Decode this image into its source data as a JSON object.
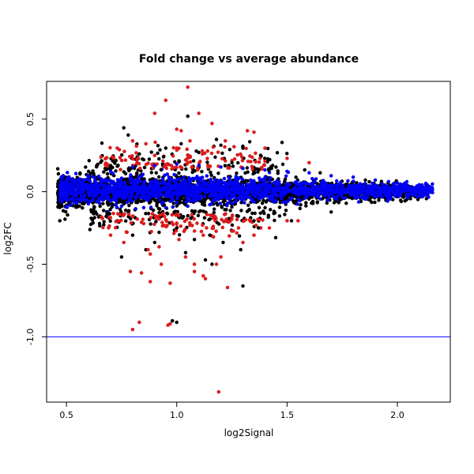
{
  "chart_data": {
    "type": "scatter",
    "title": "Fold change vs average abundance",
    "xlabel": "log2Signal",
    "ylabel": "log2FC",
    "xlim": [
      0.41,
      2.24
    ],
    "ylim": [
      -1.45,
      0.76
    ],
    "x_ticks": [
      "0.5",
      "1.0",
      "1.5",
      "2.0"
    ],
    "x_tick_values": [
      0.5,
      1.0,
      1.5,
      2.0
    ],
    "y_ticks": [
      "-1.0",
      "-0.5",
      "0.0",
      "0.5"
    ],
    "y_tick_values": [
      -1.0,
      -0.5,
      0.0,
      0.5
    ],
    "grid": false,
    "reference_line": {
      "y": -1.0,
      "color": "#0000ff"
    },
    "colors": {
      "black": "#000000",
      "red": "#e41a1c",
      "blue": "#0000ff"
    },
    "series": [
      {
        "color": "black",
        "x": [
          0.76,
          0.78,
          1.05,
          1.2,
          1.3,
          0.98,
          1.0,
          1.04,
          1.13,
          1.3,
          0.6,
          0.7,
          0.85,
          0.95,
          1.1,
          1.25,
          1.45,
          1.58,
          1.65,
          0.65,
          0.8,
          0.9,
          1.0,
          1.15,
          1.35,
          0.75,
          0.86,
          1.16,
          1.21,
          1.52,
          0.68,
          0.92,
          1.08,
          1.29,
          1.37,
          1.44,
          1.7,
          0.71,
          0.83,
          0.94,
          1.02,
          1.18,
          1.24
        ],
        "y": [
          0.44,
          0.39,
          0.52,
          0.32,
          0.3,
          -0.89,
          -0.9,
          -0.42,
          -0.47,
          -0.65,
          0.14,
          0.18,
          0.22,
          0.3,
          0.27,
          0.2,
          0.17,
          0.15,
          0.13,
          -0.22,
          -0.3,
          -0.35,
          -0.25,
          -0.3,
          -0.2,
          -0.45,
          -0.4,
          -0.5,
          -0.35,
          -0.2,
          -0.17,
          -0.28,
          -0.33,
          -0.4,
          -0.25,
          -0.15,
          -0.14,
          0.21,
          0.26,
          0.24,
          0.33,
          0.36,
          0.29
        ]
      },
      {
        "color": "red",
        "x": [
          0.8,
          0.86,
          0.9,
          0.95,
          1.0,
          1.02,
          1.05,
          1.1,
          1.16,
          1.22,
          1.26,
          1.32,
          1.35,
          1.4,
          1.5,
          1.6,
          0.79,
          0.84,
          0.88,
          0.93,
          0.97,
          1.04,
          1.08,
          1.13,
          1.18,
          1.23,
          1.3,
          1.35,
          1.42,
          1.55,
          0.8,
          0.83,
          0.96,
          1.08,
          1.12,
          1.2,
          0.92,
          0.88,
          0.73,
          0.82,
          0.9,
          1.0,
          1.06,
          1.14,
          0.7,
          0.76,
          0.85,
          0.87,
          1.01,
          1.12,
          1.28,
          1.5
        ],
        "y": [
          0.35,
          0.33,
          0.54,
          0.63,
          0.43,
          0.42,
          0.72,
          0.54,
          0.47,
          0.35,
          0.31,
          0.42,
          0.41,
          0.3,
          0.23,
          0.2,
          -0.55,
          -0.56,
          -0.43,
          -0.5,
          -0.63,
          -0.45,
          -0.55,
          -0.6,
          -0.5,
          -0.66,
          -0.35,
          -0.3,
          -0.25,
          -0.2,
          -0.95,
          -0.9,
          -0.92,
          -0.5,
          -0.58,
          -0.45,
          -0.38,
          -0.62,
          0.3,
          0.22,
          0.25,
          0.3,
          0.35,
          0.28,
          -0.3,
          -0.35,
          -0.22,
          -0.4,
          -0.33,
          -0.3,
          -0.25,
          -0.2
        ],
        "extra_points": [
          {
            "x": 0.97,
            "y": -0.91
          },
          {
            "x": 1.19,
            "y": -1.38
          }
        ]
      },
      {
        "color": "blue",
        "x": [
          0.5,
          0.6,
          0.7,
          0.8,
          0.9,
          1.0,
          1.1,
          1.2,
          1.3,
          1.4,
          1.5,
          1.6,
          1.7,
          1.8,
          1.9,
          2.0,
          2.1,
          2.15,
          0.55,
          0.65,
          0.75,
          0.85,
          0.95,
          1.05,
          1.15,
          1.25,
          1.35,
          1.45,
          1.55,
          1.65,
          1.75,
          1.85,
          1.95,
          2.05
        ],
        "y": [
          0.06,
          0.1,
          0.14,
          0.17,
          0.18,
          0.19,
          0.18,
          0.17,
          0.16,
          0.15,
          0.14,
          0.13,
          0.11,
          0.1,
          0.08,
          0.06,
          0.04,
          0.03,
          -0.05,
          -0.08,
          -0.1,
          -0.11,
          -0.11,
          -0.1,
          -0.09,
          -0.08,
          -0.07,
          -0.06,
          -0.05,
          -0.05,
          -0.04,
          -0.03,
          -0.03,
          -0.02
        ]
      }
    ]
  }
}
